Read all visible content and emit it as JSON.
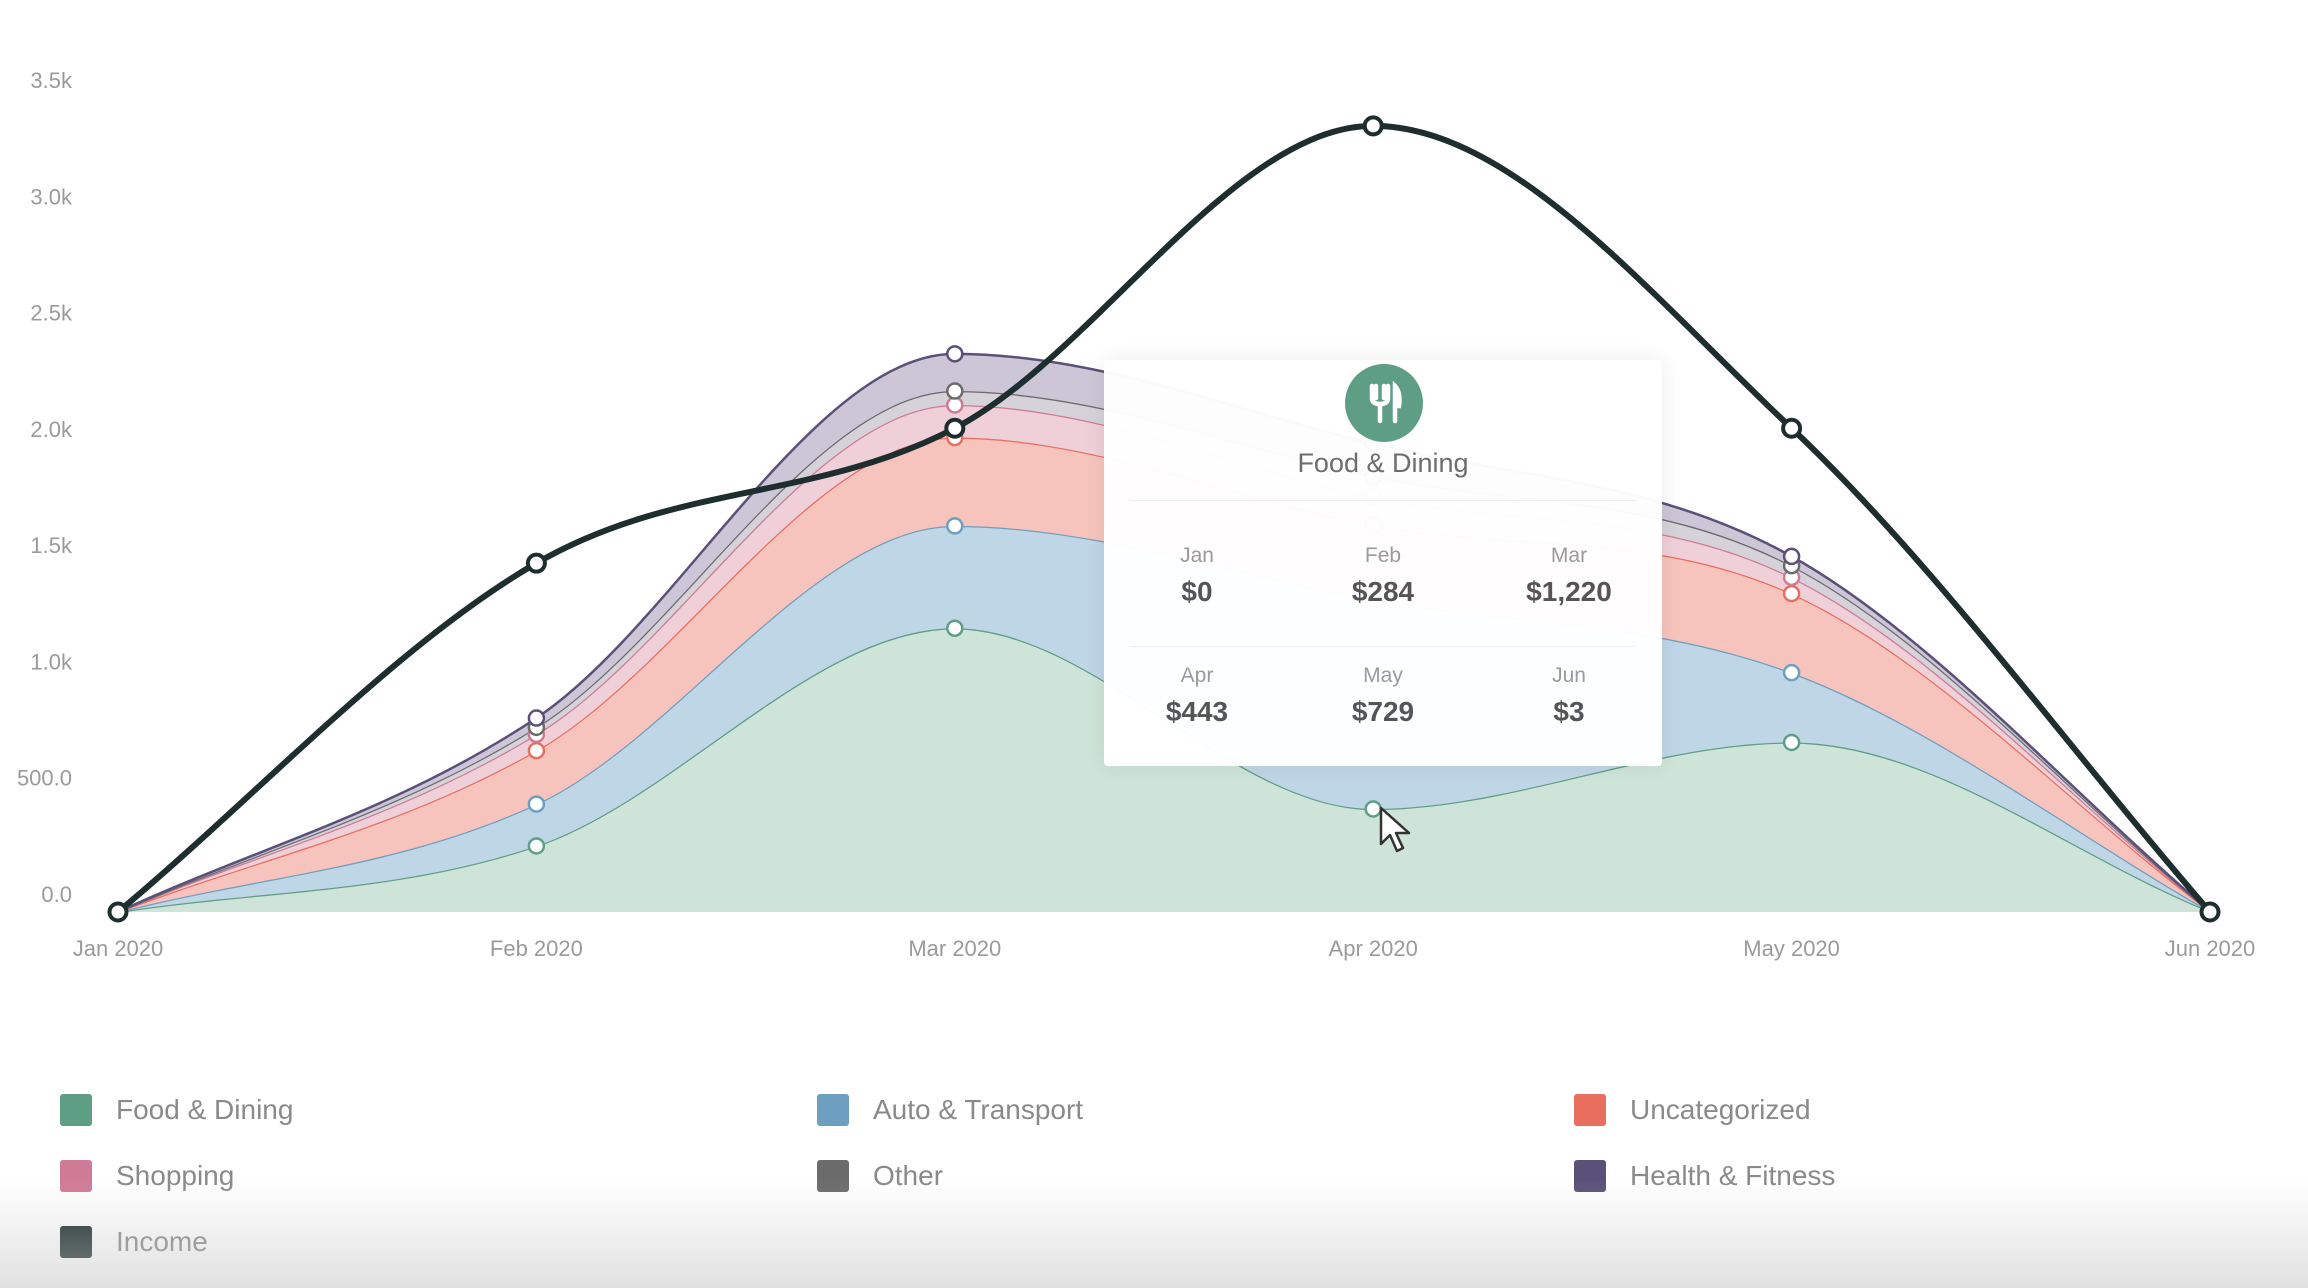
{
  "chart_data": {
    "type": "area",
    "stacked": true,
    "smooth": true,
    "x": [
      "Jan 2020",
      "Feb 2020",
      "Mar 2020",
      "Apr 2020",
      "May 2020",
      "Jun 2020"
    ],
    "ylim": [
      0,
      3500
    ],
    "yticks": [
      0,
      500,
      1000,
      1500,
      2000,
      2500,
      3000,
      3500
    ],
    "ytick_labels": [
      "0.0",
      "500.0",
      "1.0k",
      "1.5k",
      "2.0k",
      "2.5k",
      "3.0k",
      "3.5k"
    ],
    "grid": false,
    "legend_position": "bottom",
    "series": [
      {
        "name": "Food & Dining",
        "color": "#5e9e84",
        "fill": "#cfe4d8",
        "values": [
          0,
          284,
          1220,
          443,
          729,
          3
        ]
      },
      {
        "name": "Auto & Transport",
        "color": "#6f9fc0",
        "fill": "#bfd6e6",
        "values": [
          0,
          180,
          440,
          900,
          300,
          0
        ]
      },
      {
        "name": "Uncategorized",
        "color": "#ea6e5e",
        "fill": "#f6c4bc",
        "values": [
          0,
          230,
          380,
          320,
          340,
          0
        ]
      },
      {
        "name": "Shopping",
        "color": "#d07b96",
        "fill": "#efcfd8",
        "values": [
          0,
          70,
          140,
          120,
          70,
          0
        ]
      },
      {
        "name": "Other",
        "color": "#6b6b6b",
        "fill": "#d6d2d9",
        "values": [
          0,
          30,
          60,
          90,
          50,
          0
        ]
      },
      {
        "name": "Health & Fitness",
        "color": "#5b5079",
        "fill": "#cdc6d6",
        "values": [
          0,
          40,
          160,
          140,
          40,
          0
        ]
      }
    ],
    "line_series": {
      "name": "Income",
      "color": "#1e2e2e",
      "values": [
        0,
        1500,
        2080,
        3380,
        2080,
        0
      ]
    }
  },
  "tooltip": {
    "title": "Food & Dining",
    "icon": "fork-knife-icon",
    "icon_color": "#5e9e84",
    "cells": [
      {
        "month": "Jan",
        "value": "$0"
      },
      {
        "month": "Feb",
        "value": "$284"
      },
      {
        "month": "Mar",
        "value": "$1,220"
      },
      {
        "month": "Apr",
        "value": "$443"
      },
      {
        "month": "May",
        "value": "$729"
      },
      {
        "month": "Jun",
        "value": "$3"
      }
    ]
  },
  "legend": [
    {
      "label": "Food & Dining",
      "color": "#5e9e84"
    },
    {
      "label": "Auto & Transport",
      "color": "#6f9fc0"
    },
    {
      "label": "Uncategorized",
      "color": "#ea6e5e"
    },
    {
      "label": "Shopping",
      "color": "#d07b96"
    },
    {
      "label": "Other",
      "color": "#6b6b6b"
    },
    {
      "label": "Health & Fitness",
      "color": "#5b5079"
    },
    {
      "label": "Income",
      "color": "#1e2e2e"
    }
  ]
}
